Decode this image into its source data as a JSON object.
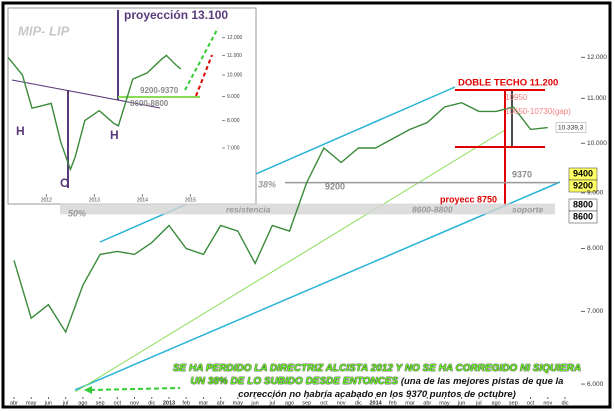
{
  "chart_data": [
    {
      "type": "line",
      "categories": [
        "abr",
        "may",
        "jun",
        "jul",
        "ago",
        "sep",
        "oct",
        "nov",
        "dic",
        "2013",
        "feb",
        "mar",
        "abr",
        "may",
        "jun",
        "jul",
        "ago",
        "sep",
        "oct",
        "nov",
        "dic",
        "2014",
        "feb",
        "mar",
        "abr",
        "may",
        "jun",
        "jul",
        "ago",
        "sep",
        "oct",
        "nov",
        "dic"
      ],
      "values": [
        7800,
        6900,
        7100,
        6700,
        7400,
        7900,
        7950,
        7900,
        8100,
        8400,
        8000,
        7900,
        8400,
        8300,
        7750,
        8400,
        8300,
        9200,
        9900,
        9600,
        9900,
        9900,
        10100,
        10300,
        10450,
        10800,
        10900,
        10700,
        10700,
        10800,
        10300,
        10339.3,
        null
      ],
      "color": "#3a8a3a",
      "log_scale": true,
      "ylim": [
        5850,
        12450
      ],
      "yticks": [
        {
          "value": 6000,
          "label": "6.000"
        },
        {
          "value": 7000,
          "label": "7.000"
        },
        {
          "value": 8000,
          "label": "8.000"
        },
        {
          "value": 9000,
          "label": "9.000"
        },
        {
          "value": 10000,
          "label": "10.000"
        },
        {
          "value": 11000,
          "label": "11.000"
        },
        {
          "value": 12000,
          "label": "12.000"
        }
      ],
      "last_price": {
        "value": 10339.3,
        "label": "10.339,3"
      },
      "levels": [
        9400,
        9200,
        8800,
        8600
      ],
      "annotations": [
        {
          "text": "DOBLE TECHO 11.200",
          "color": "#e00000"
        },
        {
          "text": "10950",
          "color": "#f08080"
        },
        {
          "text": "10650-10730(gap)",
          "color": "#f08080"
        },
        {
          "text": "9370",
          "color": "#8a8a8a"
        },
        {
          "text": "9200",
          "color": "#8a8a8a"
        },
        {
          "text": "38%",
          "color": "#9a9a9a"
        },
        {
          "text": "50%",
          "color": "#9a9a9a"
        },
        {
          "text": "resistencia",
          "color": "#9a9a9a"
        },
        {
          "text": "8600-8800",
          "color": "#9a9a9a"
        },
        {
          "text": "soporte",
          "color": "#9a9a9a"
        },
        {
          "text": "proyecc 8750",
          "color": "#e00000"
        }
      ],
      "footnote": {
        "headline": "SE HA PERDIDO LA DIRECTRIZ ALCISTA 2012 Y NO SE HA CORREGIDO NI SIQUIERA UN 38% DE LO SUBIDO DESDE ENTONCES",
        "detail": "(una de las mejores pistas de que la corrección no habría acabado en los 9370 puntos de octubre)"
      }
    },
    {
      "type": "line",
      "x": [
        2011.2,
        2011.5,
        2011.7,
        2011.9,
        2012.1,
        2012.3,
        2012.5,
        2012.6,
        2012.8,
        2013.1,
        2013.4,
        2013.5,
        2013.8,
        2014.1,
        2014.4,
        2014.5,
        2014.7,
        2014.8
      ],
      "values": [
        10900,
        10000,
        8500,
        8600,
        8700,
        7200,
        6300,
        6700,
        8000,
        8400,
        7900,
        7800,
        9800,
        10100,
        10800,
        11000,
        10500,
        10300
      ],
      "color": "#3a8a3a",
      "log_scale": true,
      "xlim": [
        2011.2,
        2016.2
      ],
      "xticks": [
        2012,
        2013,
        2014,
        2015
      ],
      "ylim": [
        5700,
        13600
      ],
      "yticks": [
        {
          "value": 7000,
          "label": "7.000"
        },
        {
          "value": 8000,
          "label": "8.000"
        },
        {
          "value": 9000,
          "label": "9.000"
        },
        {
          "value": 10000,
          "label": "10.000"
        },
        {
          "value": 11000,
          "label": "11.000"
        },
        {
          "value": 12000,
          "label": "12.000"
        }
      ],
      "annotations": [
        {
          "text": "MIP- LIP",
          "color": "#c8c8c8"
        },
        {
          "text": "proyección 13.100",
          "color": "#5a3a7a"
        },
        {
          "text": "9200-9370",
          "color": "#8a8a8a"
        },
        {
          "text": "8600-8800",
          "color": "#8a8a8a"
        },
        {
          "text": "H",
          "color": "#5a3a7a"
        },
        {
          "text": "C",
          "color": "#5a3a7a"
        },
        {
          "text": "H",
          "color": "#5a3a7a"
        }
      ]
    }
  ]
}
